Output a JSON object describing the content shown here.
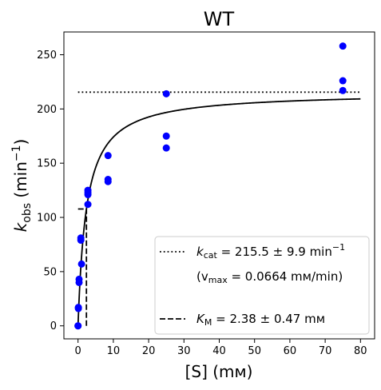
{
  "chart_data": {
    "type": "scatter",
    "title": "WT",
    "xlabel": "[S] (mм)",
    "ylabel": "k_obs (min⁻¹)",
    "xlim": [
      -4,
      84
    ],
    "ylim": [
      -12,
      271
    ],
    "xticks": [
      0,
      10,
      20,
      30,
      40,
      50,
      60,
      70,
      80
    ],
    "yticks": [
      0,
      50,
      100,
      150,
      200,
      250
    ],
    "grid": false,
    "legend_position": "lower-right",
    "colors": {
      "points": "#0000ff",
      "lines": "#000000"
    },
    "points": {
      "x": [
        0,
        0,
        0.1,
        0.1,
        0.3,
        0.3,
        0.8,
        0.8,
        1,
        2.8,
        2.8,
        2.8,
        2.8,
        8.5,
        8.5,
        8.5,
        25,
        25,
        25,
        75,
        75,
        75
      ],
      "y": [
        0,
        0,
        17,
        16,
        40,
        43,
        79,
        81,
        57,
        112,
        121,
        123,
        125,
        133,
        135,
        157,
        164,
        175,
        214,
        217,
        226,
        258
      ]
    },
    "fit": {
      "kcat": 215.5,
      "km": 2.38,
      "x_range": [
        0,
        80
      ]
    },
    "kcat_line": {
      "y": 215.5,
      "x_range": [
        0,
        80
      ]
    },
    "km_marker": {
      "x": 2.38,
      "y": 107.75
    },
    "legend": [
      {
        "style": "dotted",
        "line1_main": "k",
        "line1_sub": "cat",
        "line1_rest": " = 215.5 ± 9.9 min",
        "line1_sup": "−1",
        "line2_open": "(v",
        "line2_sub": "max",
        "line2_rest": " = 0.0664 mм/min)"
      },
      {
        "style": "dashed",
        "main": "K",
        "sub": "M",
        "rest": " = 2.38 ± 0.47 mм"
      }
    ]
  }
}
